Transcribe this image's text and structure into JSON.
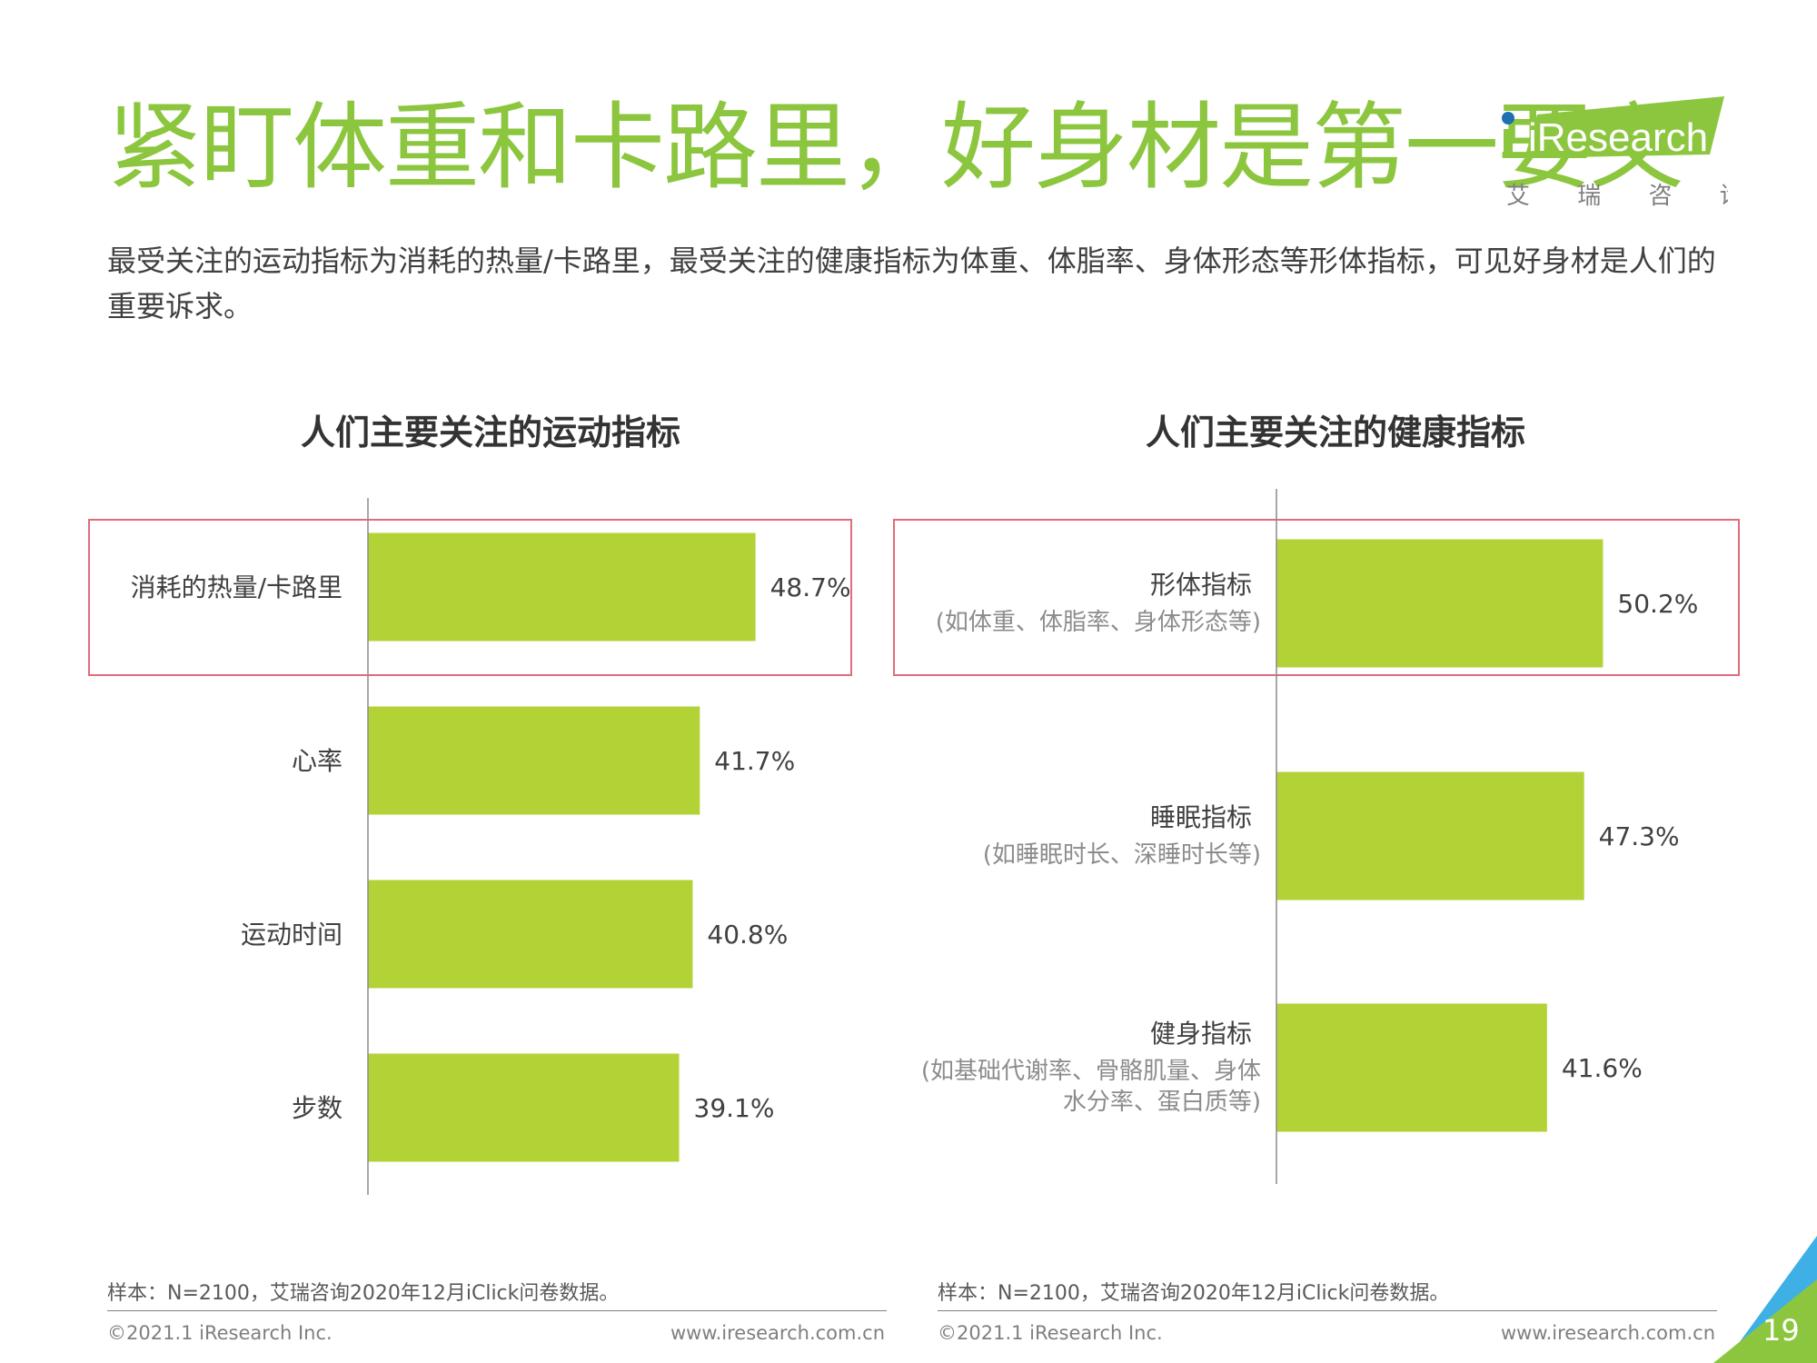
{
  "header": {
    "title": "紧盯体重和卡路里，好身材是第一要义",
    "subtitle": "最受关注的运动指标为消耗的热量/卡路里，最受关注的健康指标为体重、体脂率、身体形态等形体指标，可见好身材是人们的重要诉求。"
  },
  "logo": {
    "text": "iResearch",
    "cn": "艾 瑞 咨 询"
  },
  "colors": {
    "accent": "#8cc63f",
    "bar": "#b2d235",
    "highlight_box": "#e06c7a"
  },
  "chart_data": [
    {
      "type": "bar",
      "orientation": "horizontal",
      "title": "人们主要关注的运动指标",
      "categories": [
        "消耗的热量/卡路里",
        "心率",
        "运动时间",
        "步数"
      ],
      "values": [
        48.7,
        41.7,
        40.8,
        39.1
      ],
      "value_labels": [
        "48.7%",
        "41.7%",
        "40.8%",
        "39.1%"
      ],
      "highlighted": [
        0
      ],
      "xlabel": "",
      "ylabel": ""
    },
    {
      "type": "bar",
      "orientation": "horizontal",
      "title": "人们主要关注的健康指标",
      "categories": [
        "形体指标",
        "睡眠指标",
        "健身指标"
      ],
      "category_notes": [
        [
          "(如体重、体脂率、身体形态等)"
        ],
        [
          "(如睡眠时长、深睡时长等)"
        ],
        [
          "(如基础代谢率、骨骼肌量、身体",
          "水分率、蛋白质等)"
        ]
      ],
      "values": [
        50.2,
        47.3,
        41.6
      ],
      "value_labels": [
        "50.2%",
        "47.3%",
        "41.6%"
      ],
      "highlighted": [
        0
      ],
      "xlabel": "",
      "ylabel": ""
    }
  ],
  "footer": {
    "left": {
      "note": "样本：N=2100，艾瑞咨询2020年12月iClick问卷数据。",
      "copyright": "©2021.1 iResearch Inc.",
      "url": "www.iresearch.com.cn"
    },
    "right": {
      "note": "样本：N=2100，艾瑞咨询2020年12月iClick问卷数据。",
      "copyright": "©2021.1 iResearch Inc.",
      "url": "www.iresearch.com.cn"
    },
    "page_number": "19"
  }
}
